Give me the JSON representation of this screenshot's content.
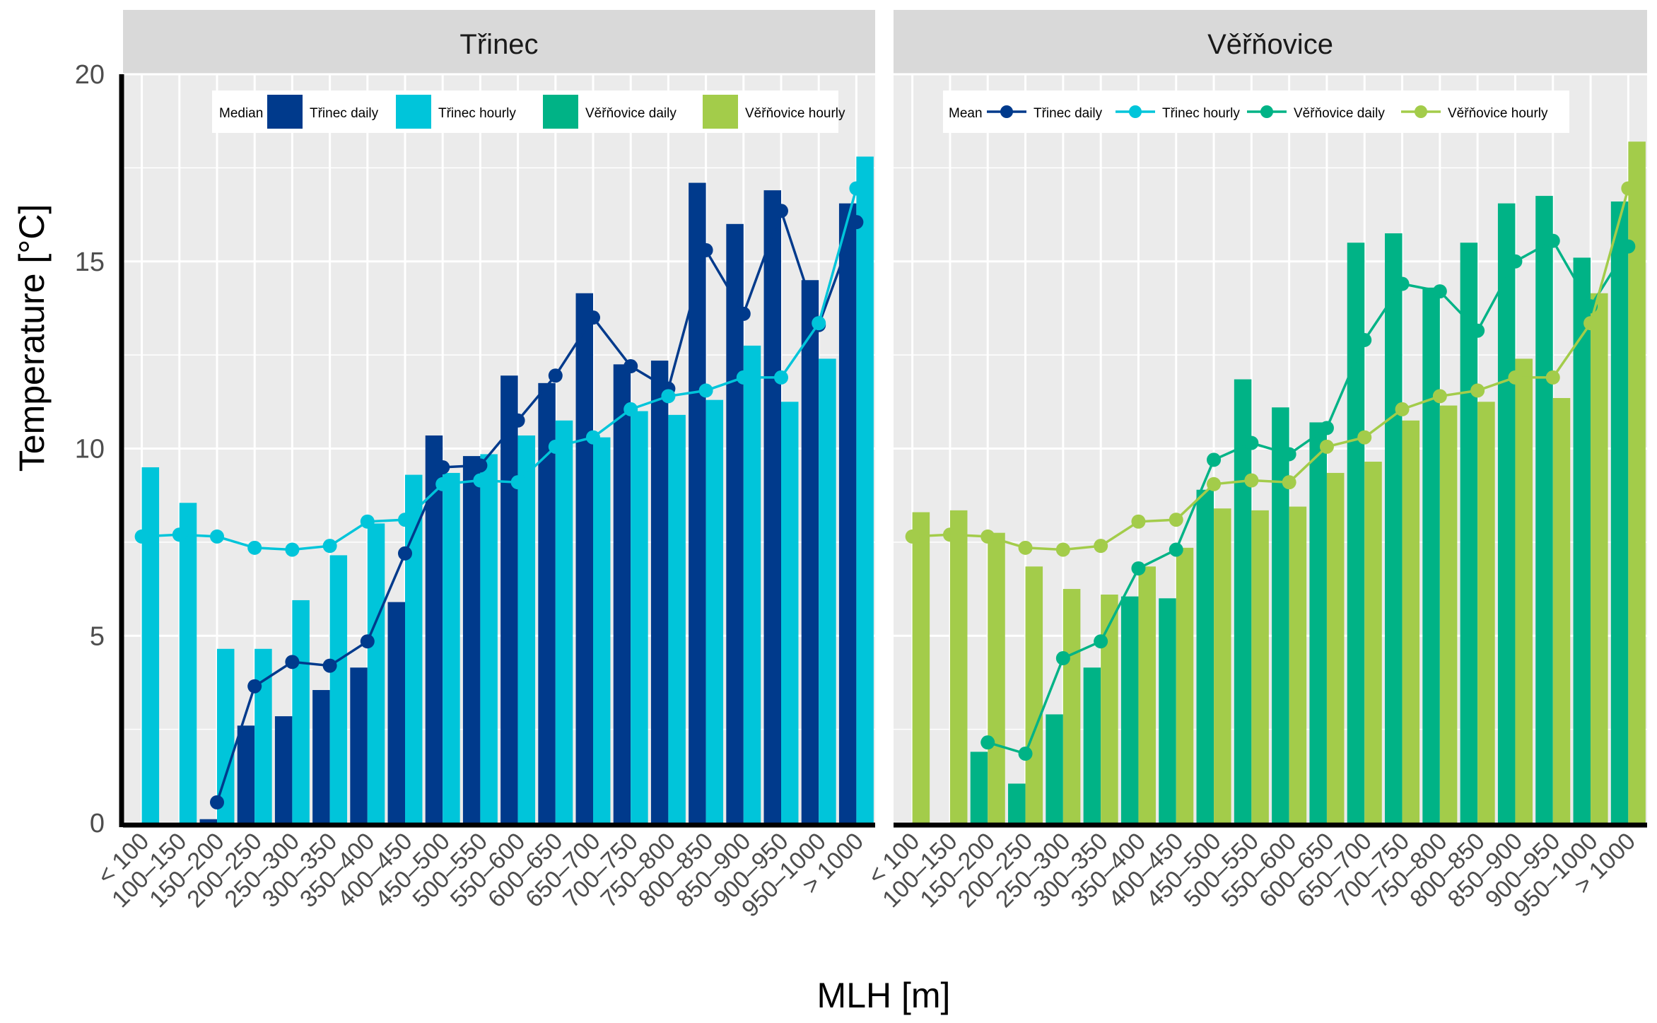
{
  "chart_data": {
    "type": "bar",
    "categories": [
      "< 100",
      "100–150",
      "150–200",
      "200–250",
      "250–300",
      "300–350",
      "350–400",
      "400–450",
      "450–500",
      "500–550",
      "550–600",
      "600–650",
      "650–700",
      "700–750",
      "750–800",
      "800–850",
      "850–900",
      "900–950",
      "950–1000",
      "> 1000"
    ],
    "xlabel": "MLH [m]",
    "ylabel": "Temperature [°C]",
    "ylim": [
      0,
      20
    ],
    "yticks": [
      0,
      5,
      10,
      15,
      20
    ],
    "grid": true,
    "legend_position": "top",
    "colors": {
      "trinec_daily": "#003A8C",
      "trinec_hourly": "#00C5DA",
      "vernovice_daily": "#00B386",
      "vernovice_hourly": "#A3CC4A",
      "strip_bg": "#D9D9D9",
      "panel_bg": "#EBEBEB"
    },
    "panels": [
      {
        "title": "Třinec",
        "bar_legend_title": "Median",
        "line_legend_title": "Mean",
        "bar_legend_labels": [
          "Třinec daily",
          "Třinec hourly",
          "Věřňovice daily",
          "Věřňovice hourly"
        ],
        "bars": [
          {
            "name": "Třinec daily",
            "color": "#003A8C",
            "values": [
              null,
              null,
              0.1,
              2.6,
              2.85,
              3.55,
              4.15,
              5.9,
              10.35,
              9.8,
              11.95,
              11.75,
              14.15,
              12.25,
              12.35,
              17.1,
              16.0,
              16.9,
              14.5,
              16.55
            ]
          },
          {
            "name": "Třinec hourly",
            "color": "#00C5DA",
            "values": [
              9.5,
              8.55,
              4.65,
              4.65,
              5.95,
              7.15,
              8.0,
              9.3,
              9.35,
              9.85,
              10.35,
              10.75,
              10.3,
              11.0,
              10.9,
              11.3,
              12.75,
              11.25,
              12.4,
              17.8
            ]
          }
        ],
        "lines": [
          {
            "name": "Třinec daily",
            "color": "#003A8C",
            "values": [
              null,
              null,
              0.55,
              3.65,
              4.3,
              4.2,
              4.85,
              7.2,
              9.5,
              9.55,
              10.75,
              11.95,
              13.5,
              12.2,
              11.6,
              15.3,
              13.6,
              16.35,
              13.3,
              16.05
            ]
          },
          {
            "name": "Třinec hourly",
            "color": "#00C5DA",
            "values": [
              7.65,
              7.7,
              7.65,
              7.35,
              7.3,
              7.4,
              8.05,
              8.1,
              9.05,
              9.15,
              9.1,
              10.05,
              10.3,
              11.05,
              11.4,
              11.55,
              11.9,
              11.9,
              13.35,
              16.95
            ]
          }
        ]
      },
      {
        "title": "Věřňovice",
        "bar_legend_title": "Median",
        "line_legend_title": "Mean",
        "line_legend_labels": [
          "Třinec daily",
          "Třinec hourly",
          "Věřňovice daily",
          "Věřňovice hourly"
        ],
        "bars": [
          {
            "name": "Věřňovice daily",
            "color": "#00B386",
            "values": [
              null,
              null,
              1.9,
              1.05,
              2.9,
              4.15,
              6.05,
              6.0,
              8.9,
              11.85,
              11.1,
              10.7,
              15.5,
              15.75,
              14.3,
              15.5,
              16.55,
              16.75,
              15.1,
              16.6
            ]
          },
          {
            "name": "Věřňovice hourly",
            "color": "#A3CC4A",
            "values": [
              8.3,
              8.35,
              7.75,
              6.85,
              6.25,
              6.1,
              6.85,
              7.35,
              8.4,
              8.35,
              8.45,
              9.35,
              9.65,
              10.75,
              11.15,
              11.25,
              12.4,
              11.35,
              14.15,
              18.2
            ]
          }
        ],
        "lines": [
          {
            "name": "Věřňovice daily",
            "color": "#00B386",
            "values": [
              null,
              null,
              2.15,
              1.85,
              4.4,
              4.85,
              6.8,
              7.3,
              9.7,
              10.15,
              9.85,
              10.55,
              12.9,
              14.4,
              14.2,
              13.15,
              15.0,
              15.55,
              13.8,
              15.4
            ]
          },
          {
            "name": "Věřňovice hourly",
            "color": "#A3CC4A",
            "values": [
              7.65,
              7.7,
              7.65,
              7.35,
              7.3,
              7.4,
              8.05,
              8.1,
              9.05,
              9.15,
              9.1,
              10.05,
              10.3,
              11.05,
              11.4,
              11.55,
              11.9,
              11.9,
              13.35,
              16.95
            ]
          }
        ]
      }
    ]
  }
}
